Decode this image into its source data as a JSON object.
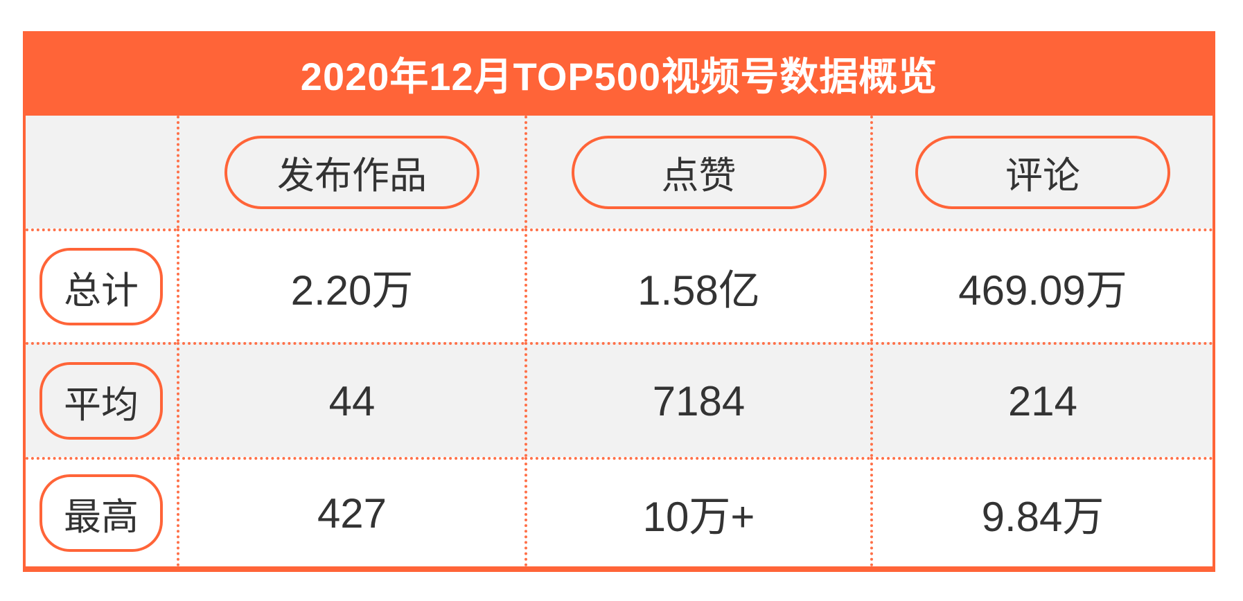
{
  "chart_data": {
    "type": "table",
    "title": "2020年12月TOP500视频号数据概览",
    "columns": [
      "发布作品",
      "点赞",
      "评论"
    ],
    "rows": [
      {
        "label": "总计",
        "values": [
          "2.20万",
          "1.58亿",
          "469.09万"
        ]
      },
      {
        "label": "平均",
        "values": [
          "44",
          "7184",
          "214"
        ]
      },
      {
        "label": "最高",
        "values": [
          "427",
          "10万+",
          "9.84万"
        ]
      }
    ],
    "layout_hints": {
      "alternating_rows": "gray-white-gray-white",
      "separators": "dotted orange between rows and columns",
      "legend_position": "none",
      "grid": "on"
    },
    "colors": {
      "accent": "#ff6438",
      "dotted_line": "#ff7048",
      "alt_row_bg": "#f2f2f2",
      "text": "#333333",
      "title_text": "#ffffff"
    }
  }
}
